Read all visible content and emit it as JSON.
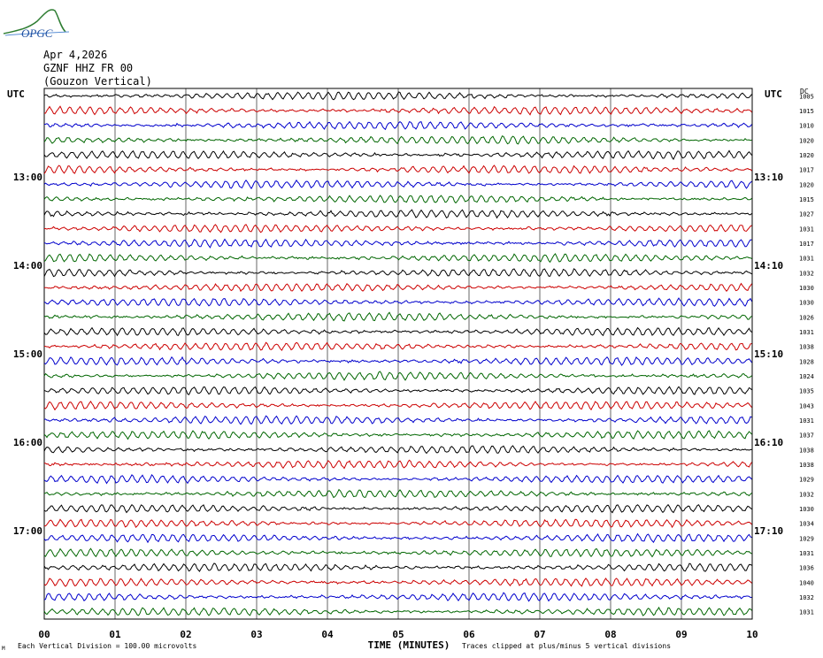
{
  "header": {
    "org": "OPGC",
    "date": "Apr 4,2026",
    "channel": "GZNF HHZ FR 00",
    "station_name": "(Gouzon Vertical)"
  },
  "colors": {
    "traces": [
      "#000000",
      "#cc0000",
      "#0000cc",
      "#006600"
    ],
    "grid": "#000000",
    "logo": "#2e7d32"
  },
  "chart_data": {
    "type": "line",
    "description_axes": "helicorder",
    "left_axis_label": "UTC",
    "right_axis_label": "UTC",
    "right_column_label": "DC",
    "xlabel": "TIME (MINUTES)",
    "x_ticks": [
      "00",
      "01",
      "02",
      "03",
      "04",
      "05",
      "06",
      "07",
      "08",
      "09",
      "10"
    ],
    "left_hour_labels": [
      "13:00",
      "14:00",
      "15:00",
      "16:00",
      "17:00"
    ],
    "right_hour_labels": [
      "13:10",
      "14:10",
      "15:10",
      "16:10",
      "17:10"
    ],
    "hour_label_rows": [
      6,
      12,
      18,
      24,
      30
    ],
    "dc_values": [
      1005,
      1015,
      1010,
      1020,
      1020,
      1017,
      1020,
      1015,
      1027,
      1031,
      1017,
      1031,
      1032,
      1030,
      1030,
      1026,
      1031,
      1038,
      1028,
      1024,
      1035,
      1043,
      1031,
      1037,
      1038,
      1038,
      1029,
      1032,
      1030,
      1034,
      1029,
      1031,
      1036,
      1040,
      1032,
      1031
    ],
    "footer_left": "Each Vertical Division =  100.00 microvolts",
    "footer_right": "Traces clipped at plus/minus 5 vertical divisions",
    "corner_mark": "M"
  }
}
